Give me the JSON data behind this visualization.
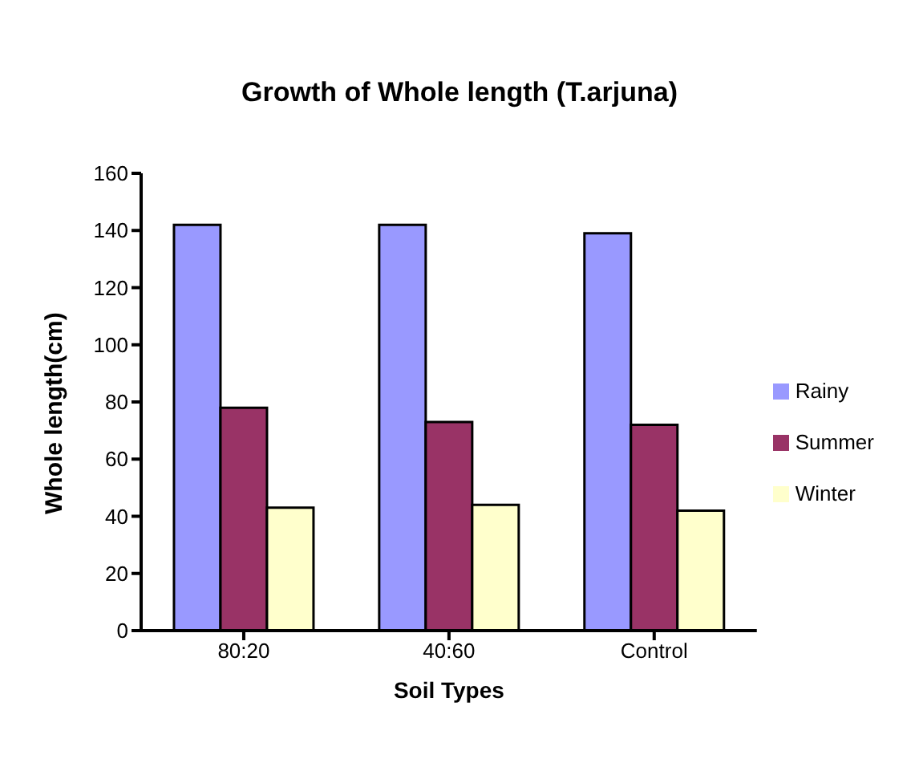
{
  "chart_data": {
    "type": "bar",
    "title": "Growth of Whole length (T.arjuna)",
    "xlabel": "Soil Types",
    "ylabel": "Whole length(cm)",
    "categories": [
      "80:20",
      "40:60",
      "Control"
    ],
    "series": [
      {
        "name": "Rainy",
        "color": "#9999ff",
        "values": [
          142,
          142,
          139
        ]
      },
      {
        "name": "Summer",
        "color": "#993366",
        "values": [
          78,
          73,
          72
        ]
      },
      {
        "name": "Winter",
        "color": "#ffffcc",
        "values": [
          43,
          44,
          42
        ]
      }
    ],
    "ylim": [
      0,
      160
    ],
    "yticks": [
      0,
      20,
      40,
      60,
      80,
      100,
      120,
      140,
      160
    ],
    "grid": false,
    "legend": "right"
  }
}
